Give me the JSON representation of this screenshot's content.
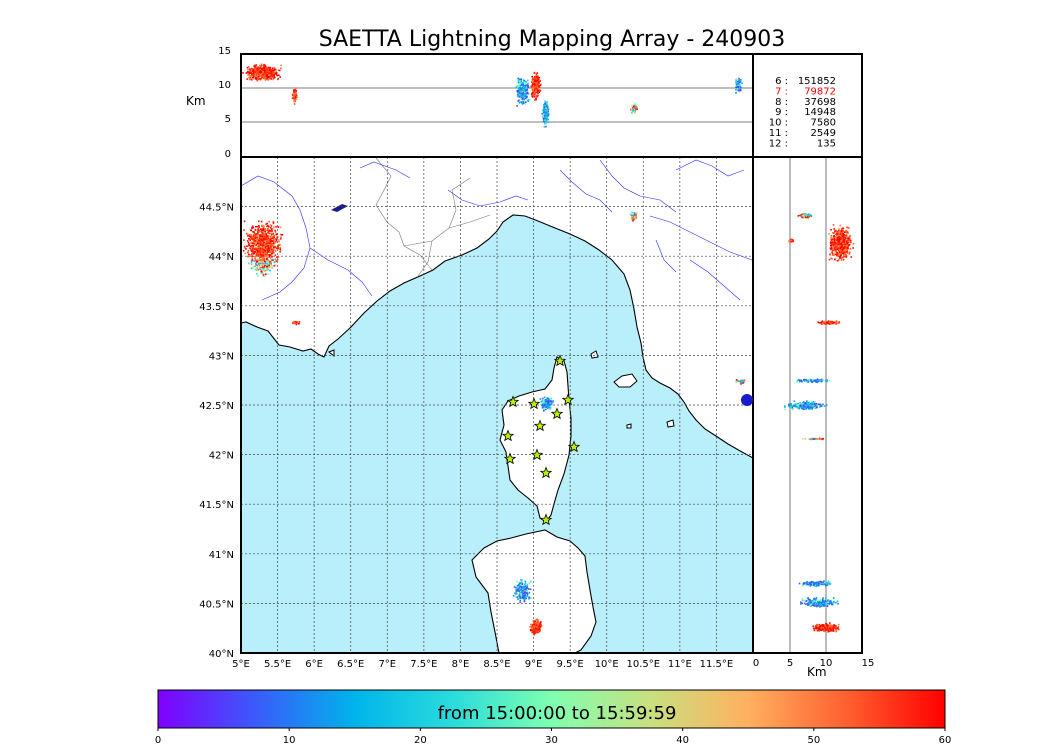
{
  "title": "SAETTA Lightning Mapping Array - 240903",
  "alt_axis_label": "Km",
  "alt_ticks": [
    "0",
    "5",
    "10",
    "15"
  ],
  "lon_ticks": [
    "5°E",
    "5.5°E",
    "6°E",
    "6.5°E",
    "7°E",
    "7.5°E",
    "8°E",
    "8.5°E",
    "9°E",
    "9.5°E",
    "10°E",
    "10.5°E",
    "11°E",
    "11.5°E"
  ],
  "lat_ticks": [
    "40°N",
    "40.5°N",
    "41°N",
    "41.5°N",
    "42°N",
    "42.5°N",
    "43°N",
    "43.5°N",
    "44°N",
    "44.5°N"
  ],
  "station_stats": [
    {
      "label": "6  :",
      "count": "151852",
      "color": "#000000"
    },
    {
      "label": "7  :",
      "count": "79872",
      "color": "#ff0000"
    },
    {
      "label": "8  :",
      "count": "37698",
      "color": "#000000"
    },
    {
      "label": "9  :",
      "count": "14948",
      "color": "#000000"
    },
    {
      "label": "10  :",
      "count": "7580",
      "color": "#000000"
    },
    {
      "label": "11  :",
      "count": "2549",
      "color": "#000000"
    },
    {
      "label": "12  :",
      "count": "135",
      "color": "#000000"
    }
  ],
  "colorbar": {
    "label": "from 15:00:00 to 15:59:59",
    "ticks": [
      "0",
      "10",
      "20",
      "30",
      "40",
      "50",
      "60"
    ],
    "colors": [
      "#7f00ff",
      "#3a5cfb",
      "#00b4eb",
      "#2adcdc",
      "#7fffb0",
      "#c8e080",
      "#ffb060",
      "#ff6030",
      "#ff0000"
    ]
  },
  "colors": {
    "sea": "#b9eefb",
    "land": "#ffffff",
    "river": "#2a2aff",
    "border": "#555555",
    "station_fill": "#b7f000"
  }
}
